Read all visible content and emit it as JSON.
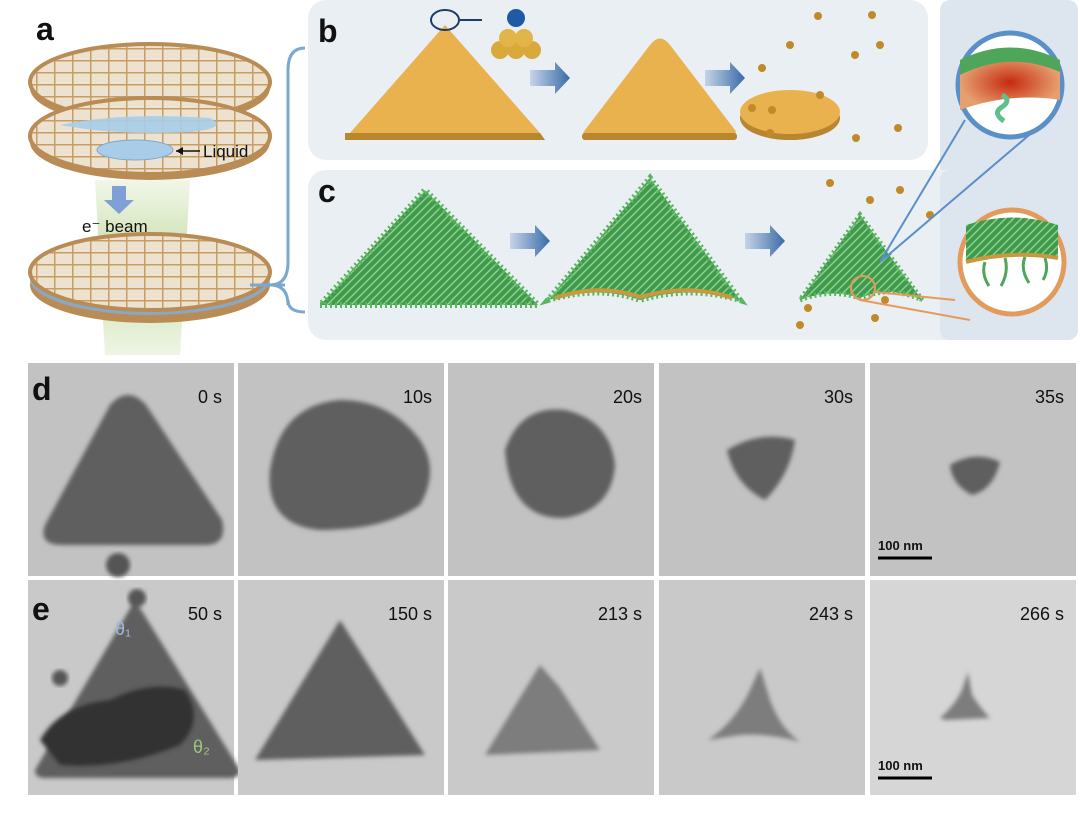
{
  "panel_a": {
    "label": "a",
    "liquid_label": "Liquid",
    "beam_label": "e⁻ beam"
  },
  "panel_b": {
    "label": "b"
  },
  "panel_c": {
    "label": "c"
  },
  "panel_d": {
    "label": "d",
    "frames": [
      "0 s",
      "10s",
      "20s",
      "30s",
      "35s"
    ],
    "scale_bar": "100 nm"
  },
  "panel_e": {
    "label": "e",
    "frames": [
      "50 s",
      "150 s",
      "213 s",
      "243 s",
      "266 s"
    ],
    "scale_bar": "100 nm",
    "angle_labels": [
      "θ₁",
      "θ₂"
    ]
  }
}
